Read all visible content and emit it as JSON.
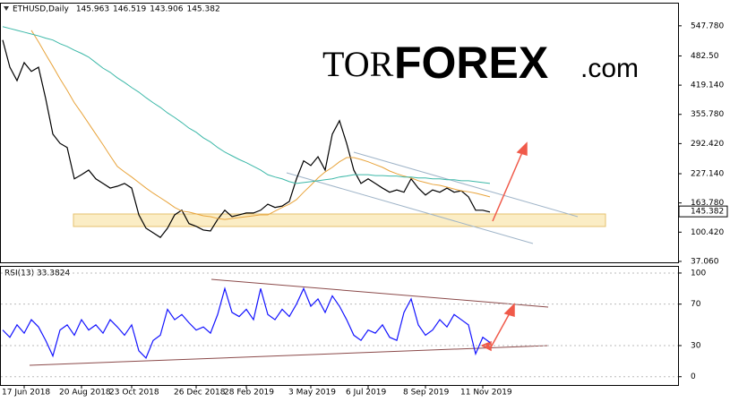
{
  "logo": {
    "left": "TOR",
    "middle": "FOREX",
    "right": ".com"
  },
  "chart_data": [
    {
      "type": "line",
      "title": "ETHUSD,Daily",
      "header_values": [
        145.963,
        146.519,
        143.906,
        145.382
      ],
      "last_price": 145.382,
      "series": [
        {
          "color": "#000000",
          "values": [
            517,
            458,
            429,
            468,
            449,
            458,
            390,
            313,
            293,
            284,
            216,
            225,
            235,
            216,
            206,
            196,
            200,
            206,
            196,
            138,
            109,
            99,
            89,
            109,
            138,
            148,
            119,
            113,
            105,
            103,
            128,
            148,
            134,
            138,
            142,
            142,
            148,
            161,
            154,
            157,
            167,
            216,
            255,
            245,
            264,
            235,
            313,
            342,
            293,
            235,
            206,
            216,
            206,
            196,
            187,
            192,
            187,
            216,
            196,
            181,
            192,
            187,
            196,
            187,
            190,
            177,
            148,
            148,
            144
          ]
        },
        {
          "color": "#e8a33a",
          "values": [
            null,
            null,
            null,
            null,
            538,
            513,
            486,
            460,
            433,
            408,
            381,
            359,
            336,
            313,
            290,
            266,
            243,
            231,
            220,
            208,
            196,
            185,
            175,
            165,
            154,
            146,
            144,
            140,
            136,
            134,
            130,
            128,
            130,
            132,
            134,
            136,
            138,
            138,
            146,
            154,
            161,
            171,
            187,
            202,
            218,
            231,
            241,
            253,
            262,
            262,
            258,
            253,
            247,
            241,
            233,
            227,
            222,
            218,
            212,
            208,
            204,
            202,
            198,
            194,
            190,
            188,
            185,
            181,
            177
          ]
        },
        {
          "color": "#3cb8a8",
          "values": [
            546,
            542,
            538,
            534,
            530,
            526,
            521,
            517,
            509,
            503,
            495,
            488,
            480,
            468,
            456,
            447,
            435,
            425,
            414,
            404,
            392,
            381,
            371,
            359,
            349,
            338,
            326,
            317,
            305,
            296,
            284,
            274,
            266,
            258,
            251,
            243,
            235,
            225,
            220,
            216,
            210,
            206,
            208,
            210,
            212,
            214,
            216,
            220,
            222,
            225,
            225,
            225,
            223,
            223,
            222,
            222,
            220,
            220,
            218,
            218,
            216,
            216,
            214,
            214,
            212,
            212,
            210,
            208,
            206
          ]
        }
      ],
      "ylim": [
        35,
        596
      ],
      "yticks": [
        {
          "value": 547.78,
          "label": "547.780"
        },
        {
          "value": 482.5,
          "label": "482.50"
        },
        {
          "value": 419.14,
          "label": "419.140"
        },
        {
          "value": 355.78,
          "label": "355.780"
        },
        {
          "value": 292.42,
          "label": "292.420"
        },
        {
          "value": 227.14,
          "label": "227.140"
        },
        {
          "value": 163.78,
          "label": "163.780"
        },
        {
          "value": 100.42,
          "label": "100.420"
        },
        {
          "value": 37.06,
          "label": "37.060"
        }
      ]
    },
    {
      "type": "line",
      "title": "RSI(13) 33.3824",
      "categories": [
        null,
        null,
        null,
        "17 Jun 2018",
        null,
        null,
        null,
        null,
        null,
        null,
        null,
        "20 Aug 2018",
        null,
        null,
        null,
        null,
        null,
        null,
        "23 Oct 2018",
        null,
        null,
        null,
        null,
        null,
        null,
        null,
        null,
        "26 Dec 2018",
        null,
        null,
        null,
        null,
        null,
        null,
        "28 Feb 2019",
        null,
        null,
        null,
        null,
        null,
        null,
        null,
        null,
        "3 May 2019",
        null,
        null,
        null,
        null,
        null,
        null,
        null,
        "6 Jul 2019",
        null,
        null,
        null,
        null,
        null,
        null,
        null,
        "8 Sep 2019",
        null,
        null,
        null,
        null,
        null,
        null,
        null,
        "11 Nov 2019",
        null
      ],
      "series": [
        {
          "color": "#1414ff",
          "values": [
            45,
            38,
            50,
            42,
            55,
            48,
            35,
            20,
            45,
            50,
            40,
            55,
            45,
            50,
            42,
            55,
            48,
            40,
            50,
            25,
            18,
            35,
            40,
            65,
            55,
            60,
            52,
            45,
            48,
            42,
            60,
            85,
            62,
            58,
            65,
            55,
            85,
            60,
            55,
            65,
            58,
            70,
            85,
            68,
            75,
            62,
            78,
            68,
            55,
            40,
            35,
            45,
            42,
            50,
            38,
            35,
            62,
            75,
            50,
            40,
            45,
            55,
            48,
            60,
            55,
            50,
            22,
            38,
            33
          ]
        }
      ],
      "ylim": [
        -8,
        106
      ],
      "yticks": [
        100,
        70,
        30,
        0
      ]
    }
  ]
}
